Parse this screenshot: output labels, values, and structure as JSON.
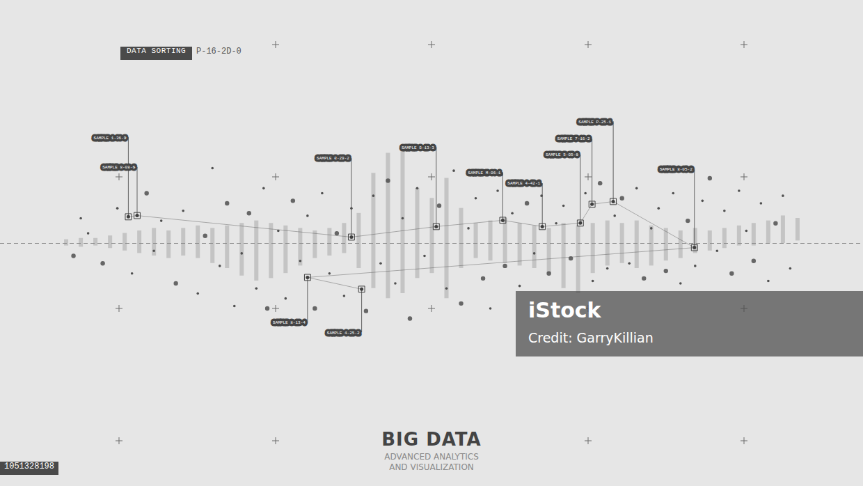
{
  "chart_data": {
    "type": "scatter",
    "title": "BIG DATA",
    "subtitle": [
      "ADVANCED ANALYTICS",
      "AND VISUALIZATION"
    ],
    "tag": "DATA SORTING",
    "code": "P-16-2D-0",
    "watermark": {
      "brand": "iStock",
      "credit": "Credit: GarryKillian",
      "id": "1051328198"
    },
    "xlim": [
      -9,
      109
    ],
    "ylim": [
      -97,
      97
    ],
    "tick_labels": false,
    "grid": false,
    "bars": {
      "color": "#a8a8a8",
      "x": [
        0,
        2,
        4,
        6,
        8,
        10,
        12,
        14,
        16,
        18,
        20,
        22,
        24,
        26,
        28,
        30,
        32,
        34,
        36,
        38,
        40,
        42,
        44,
        46,
        48,
        50,
        52,
        54,
        56,
        58,
        60,
        62,
        64,
        66,
        68,
        70,
        72,
        74,
        76,
        78,
        80,
        82,
        84,
        86,
        88,
        90,
        92,
        94,
        96,
        98,
        100
      ],
      "low": [
        -1,
        -1.5,
        -1,
        -2,
        -3,
        -4,
        -5,
        -6,
        -5,
        -6,
        -8,
        -10,
        -13,
        -15,
        -14,
        -12,
        -9,
        -6,
        -5,
        -4,
        -10,
        -18,
        -22,
        -20,
        -14,
        -12,
        -22,
        -10,
        -6,
        -7,
        -8,
        -9,
        -10,
        -12,
        -18,
        -20,
        -12,
        -9,
        -8,
        -10,
        -9,
        -7,
        -6,
        -4,
        -3,
        -2,
        -1,
        -1,
        0,
        0,
        1
      ],
      "high": [
        1.5,
        2,
        2,
        3,
        4,
        5,
        6,
        5,
        6,
        7,
        6,
        7,
        8,
        9,
        8,
        7,
        6,
        5,
        6,
        8,
        12,
        28,
        36,
        38,
        22,
        18,
        26,
        14,
        8,
        9,
        10,
        8,
        7,
        6,
        8,
        7,
        8,
        9,
        8,
        9,
        7,
        6,
        5,
        6,
        5,
        6,
        7,
        8,
        9,
        11,
        10
      ]
    },
    "points": {
      "color": "#4f4f4f",
      "x": [
        1,
        2,
        3,
        5,
        7,
        9,
        11,
        12,
        13,
        15,
        16,
        18,
        19,
        20,
        21,
        22,
        23,
        24,
        25,
        26,
        27,
        27.5,
        29,
        30,
        31,
        32,
        33,
        34,
        35,
        36,
        37,
        38,
        39,
        41,
        42,
        43,
        44,
        45,
        46,
        47,
        48,
        49,
        51,
        52,
        53,
        54,
        55,
        56,
        57,
        58,
        59,
        60,
        61,
        62,
        63,
        64,
        65,
        66,
        67,
        68,
        69,
        71,
        72,
        73,
        74,
        75,
        76,
        77,
        78,
        79,
        80,
        81,
        82,
        83,
        84,
        85,
        86,
        87,
        88,
        89,
        90,
        91,
        92,
        93,
        94,
        95,
        96,
        97,
        98,
        99
      ],
      "y": [
        -5,
        10,
        4,
        -8,
        14,
        -12,
        20,
        -3,
        9,
        -16,
        13,
        -20,
        3,
        30,
        -9,
        16,
        -25,
        -4,
        12,
        -18,
        22,
        -26,
        5,
        -22,
        17,
        -7,
        11,
        -26,
        20,
        -12,
        4,
        -21,
        14,
        -27,
        19,
        -8,
        25,
        -16,
        10,
        -30,
        22,
        -5,
        15,
        -18,
        29,
        -24,
        6,
        18,
        -14,
        -26,
        21,
        -9,
        12,
        -17,
        16,
        -4,
        19,
        -12,
        8,
        15,
        -6,
        20,
        -15,
        24,
        -10,
        11,
        18,
        -8,
        22,
        -14,
        6,
        14,
        -11,
        20,
        -16,
        9,
        -9,
        17,
        26,
        -3,
        13,
        -12,
        21,
        5,
        -7,
        16,
        -15,
        8,
        19,
        -10
      ]
    },
    "samples": {
      "color": "#3f3f3f",
      "labels": [
        "SAMPLE 1-36-9",
        "SAMPLE 8-08-6",
        "SAMPLE 3-29-2",
        "SAMPLE 3-13-3",
        "SAMPLE M-06-1",
        "SAMPLE 4-42-1",
        "SAMPLE 5-05-6",
        "SAMPLE 7-16-2",
        "SAMPLE P-25-1",
        "SAMPLE 8-05-2",
        "SAMPLE 8-13-4",
        "SAMPLE 4-25-2"
      ],
      "x": [
        8.5,
        9.7,
        39.0,
        50.6,
        59.7,
        65.1,
        70.3,
        71.9,
        74.8,
        85.9,
        33.0,
        40.4
      ],
      "y": [
        10.6,
        11.1,
        2.5,
        6.7,
        9.2,
        6.7,
        8.1,
        15.6,
        16.7,
        -1.7,
        -13.6,
        -18.3
      ],
      "label_y": [
        42.2,
        30.3,
        33.9,
        38.3,
        28.3,
        23.9,
        35.3,
        41.7,
        48.6,
        29.7,
        -31.7,
        -35.6
      ]
    }
  }
}
